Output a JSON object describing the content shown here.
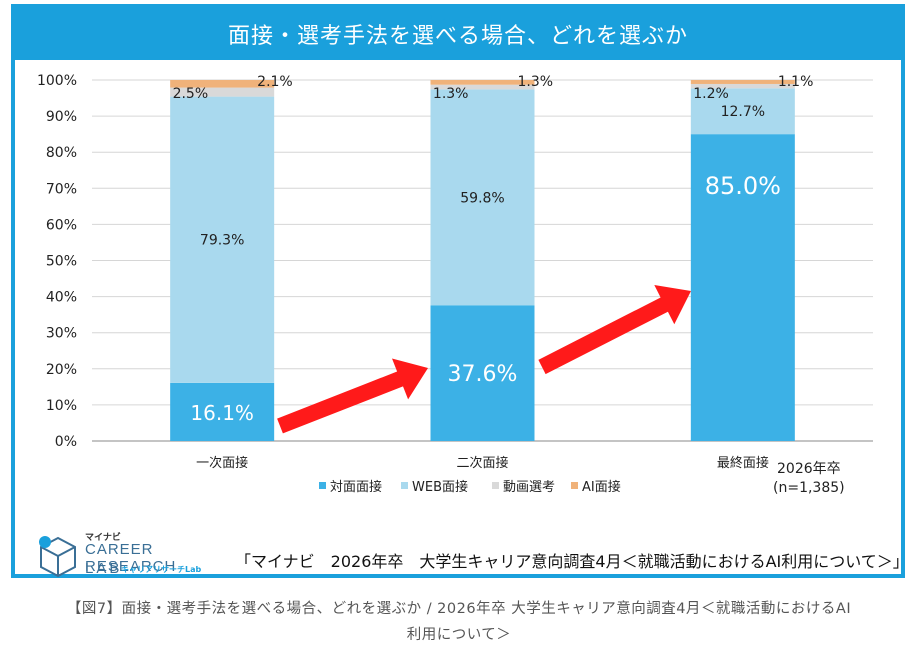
{
  "header": {
    "title": "面接・選考手法を選べる場合、どれを選ぶか"
  },
  "chart_data": {
    "type": "bar",
    "stacked": true,
    "categories": [
      "一次面接",
      "二次面接",
      "最終面接"
    ],
    "series": [
      {
        "name": "対面面接",
        "values": [
          16.1,
          37.6,
          85.0
        ],
        "labels": [
          "16.1%",
          "37.6%",
          "85.0%"
        ],
        "color": "#3cb1e6"
      },
      {
        "name": "WEB面接",
        "values": [
          79.3,
          59.8,
          12.7
        ],
        "labels": [
          "79.3%",
          "59.8%",
          "12.7%"
        ],
        "color": "#a9d9ee"
      },
      {
        "name": "動画選考",
        "values": [
          2.5,
          1.3,
          1.2
        ],
        "labels": [
          "2.5%",
          "1.3%",
          "1.2%"
        ],
        "color": "#d9d9d9"
      },
      {
        "name": "AI面接",
        "values": [
          2.1,
          1.3,
          1.1
        ],
        "labels": [
          "2.1%",
          "1.3%",
          "1.1%"
        ],
        "color": "#f0b27a"
      }
    ],
    "ylim": [
      0,
      100
    ],
    "yticks": [
      "0%",
      "10%",
      "20%",
      "30%",
      "40%",
      "50%",
      "60%",
      "70%",
      "80%",
      "90%",
      "100%"
    ],
    "grid": true,
    "legend_position": "bottom",
    "annotation": {
      "line1": "2026年卒",
      "line2": "(n=1,385)"
    },
    "arrow_color": "#ff1a1a"
  },
  "logo": {
    "brand": "マイナビ",
    "line1": "CAREER RESEARCH",
    "line2": "LAB",
    "tagline": "キャリアリサーチLab"
  },
  "source": "「マイナビ　2026年卒　大学生キャリア意向調査4月＜就職活動におけるAI利用について＞」",
  "caption": {
    "line1": "【図7】面接・選考手法を選べる場合、どれを選ぶか / 2026年卒 大学生キャリア意向調査4月＜就職活動におけるAI",
    "line2": "利用について＞"
  }
}
